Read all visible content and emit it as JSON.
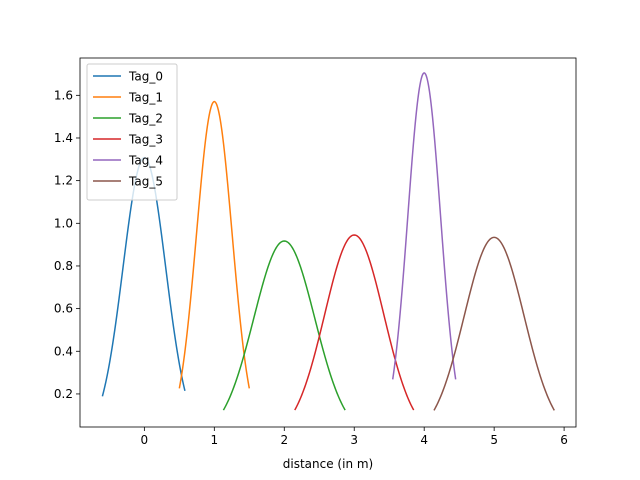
{
  "chart_data": {
    "type": "line",
    "title": "",
    "xlabel": "distance (in m)",
    "ylabel": "",
    "xlim": [
      -0.92,
      6.17
    ],
    "ylim": [
      0.045,
      1.775
    ],
    "xticks": [
      0,
      1,
      2,
      3,
      4,
      5,
      6
    ],
    "yticks": [
      0.2,
      0.4,
      0.6,
      0.8,
      1.0,
      1.2,
      1.4,
      1.6
    ],
    "ytick_labels": [
      "0.2",
      "0.4",
      "0.6",
      "0.8",
      "1.0",
      "1.2",
      "1.4",
      "1.6"
    ],
    "grid": false,
    "legend_position": "top-left",
    "series": [
      {
        "name": "Tag_0",
        "color": "#1f77b4",
        "mu": 0.0,
        "sigma": 0.305,
        "x_range": [
          -0.6,
          0.58
        ]
      },
      {
        "name": "Tag_1",
        "color": "#ff7f0e",
        "mu": 1.0,
        "sigma": 0.254,
        "x_range": [
          0.5,
          1.5
        ]
      },
      {
        "name": "Tag_2",
        "color": "#2ca02c",
        "mu": 2.0,
        "sigma": 0.435,
        "x_range": [
          1.13,
          2.87
        ]
      },
      {
        "name": "Tag_3",
        "color": "#d62728",
        "mu": 3.0,
        "sigma": 0.422,
        "x_range": [
          2.15,
          3.85
        ]
      },
      {
        "name": "Tag_4",
        "color": "#9467bd",
        "mu": 4.0,
        "sigma": 0.234,
        "x_range": [
          3.55,
          4.45
        ]
      },
      {
        "name": "Tag_5",
        "color": "#8c564b",
        "mu": 5.0,
        "sigma": 0.427,
        "x_range": [
          4.14,
          5.86
        ]
      }
    ]
  }
}
